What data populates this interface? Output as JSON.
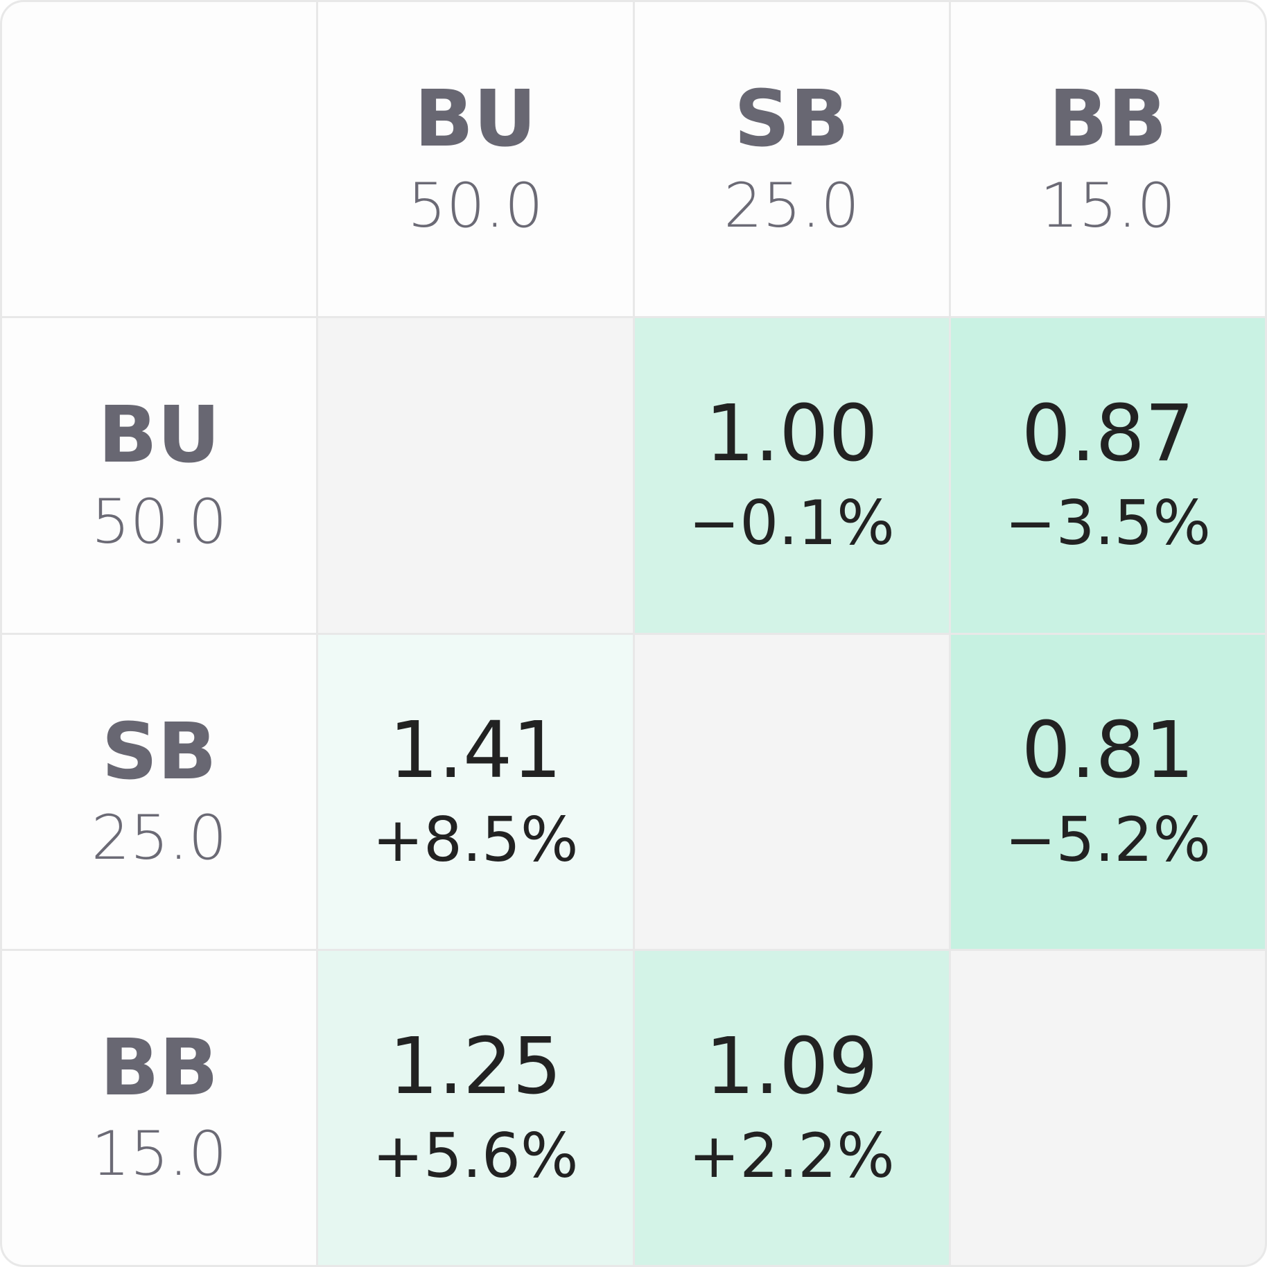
{
  "columns": [
    {
      "name": "BU",
      "stack": "50.0"
    },
    {
      "name": "SB",
      "stack": "25.0"
    },
    {
      "name": "BB",
      "stack": "15.0"
    }
  ],
  "rows": [
    {
      "name": "BU",
      "stack": "50.0",
      "cells": [
        null,
        {
          "value": "1.00",
          "change": "−0.1%",
          "color": "#d3f3e7"
        },
        {
          "value": "0.87",
          "change": "−3.5%",
          "color": "#c9f2e3"
        }
      ]
    },
    {
      "name": "SB",
      "stack": "25.0",
      "cells": [
        {
          "value": "1.41",
          "change": "+8.5%",
          "color": "#f0faf7"
        },
        null,
        {
          "value": "0.81",
          "change": "−5.2%",
          "color": "#c6f1e1"
        }
      ]
    },
    {
      "name": "BB",
      "stack": "15.0",
      "cells": [
        {
          "value": "1.25",
          "change": "+5.6%",
          "color": "#e6f7f1"
        },
        {
          "value": "1.09",
          "change": "+2.2%",
          "color": "#d3f3e7"
        },
        null
      ]
    }
  ]
}
